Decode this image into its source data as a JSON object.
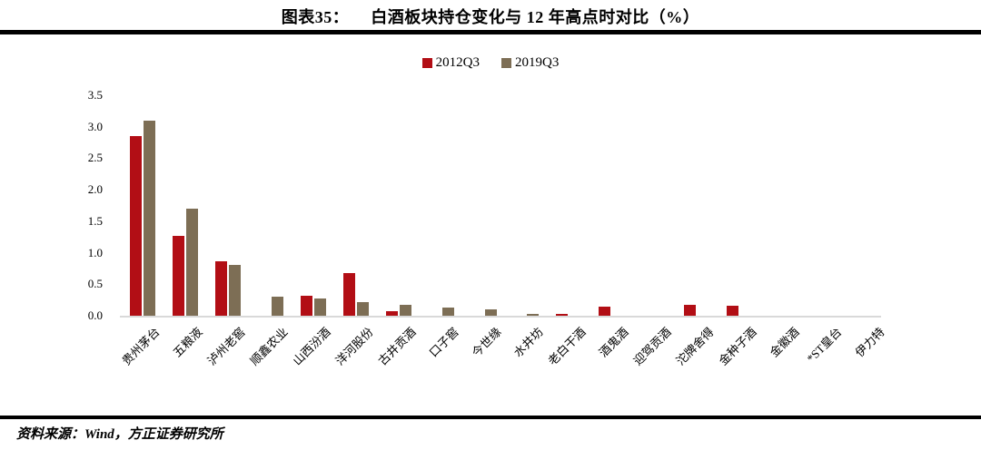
{
  "header": {
    "figure_label": "图表35：",
    "title": "白酒板块持仓变化与 12 年高点时对比（%）"
  },
  "chart_data": {
    "type": "bar",
    "title": "白酒板块持仓变化与 12 年高点时对比（%）",
    "xlabel": "",
    "ylabel": "",
    "ylim": [
      0,
      3.5
    ],
    "yticks": [
      "0.0",
      "0.5",
      "1.0",
      "1.5",
      "2.0",
      "2.5",
      "3.0",
      "3.5"
    ],
    "grid": false,
    "legend_position": "top-center",
    "axis_color": "#d9d9d9",
    "categories": [
      "贵州茅台",
      "五粮液",
      "泸州老窖",
      "顺鑫农业",
      "山西汾酒",
      "洋河股份",
      "古井贡酒",
      "口子窖",
      "今世缘",
      "水井坊",
      "老白干酒",
      "酒鬼酒",
      "迎驾贡酒",
      "沱牌舍得",
      "金种子酒",
      "金徽酒",
      "*ST皇台",
      "伊力特"
    ],
    "series": [
      {
        "name": "2012Q3",
        "color": "#b20e15",
        "values": [
          2.85,
          1.27,
          0.86,
          0,
          0.32,
          0.67,
          0.07,
          0,
          0,
          0,
          0.02,
          0.15,
          0,
          0.17,
          0.16,
          0,
          0,
          0
        ]
      },
      {
        "name": "2019Q3",
        "color": "#7d6e55",
        "values": [
          3.1,
          1.7,
          0.8,
          0.3,
          0.28,
          0.22,
          0.17,
          0.13,
          0.1,
          0.03,
          0,
          0,
          0,
          0,
          0,
          0,
          0,
          0
        ]
      }
    ]
  },
  "footer": {
    "source": "资料来源：Wind，方正证券研究所"
  }
}
